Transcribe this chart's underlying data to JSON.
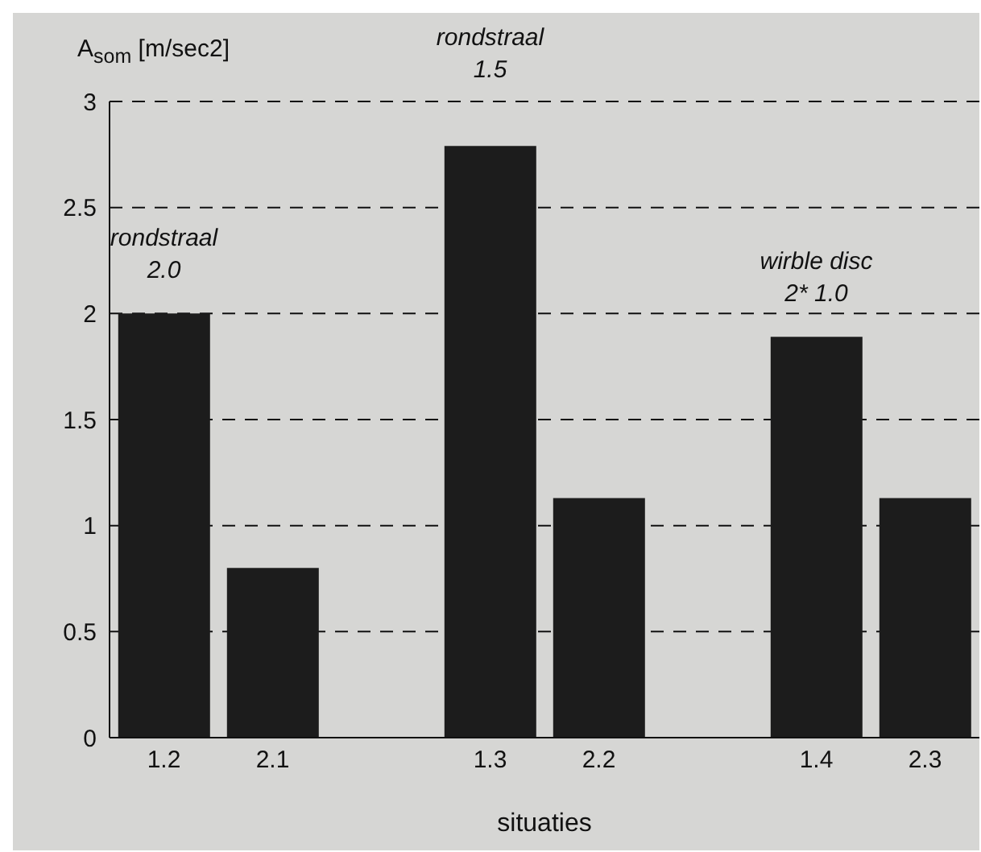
{
  "chart_data": {
    "type": "bar",
    "xlabel": "situaties",
    "ylabel": "A$_{som}$ [m/sec2]",
    "categories": [
      "1.2",
      "2.1",
      null,
      "1.3",
      "2.2",
      null,
      "1.4",
      "2.3"
    ],
    "values": [
      2.0,
      0.8,
      null,
      2.79,
      1.13,
      null,
      1.89,
      1.13
    ],
    "color": "#1c1c1c",
    "ylim": [
      0,
      3
    ],
    "yticks": [
      0,
      0.5,
      1,
      1.5,
      2,
      2.5,
      3
    ],
    "grid": "y",
    "line_style": "dashed",
    "annotations": [
      {
        "text": "rondstraal\n2.0",
        "x": "1.2",
        "y": 2.0
      },
      {
        "text": "rondstraal\n1.5",
        "x": "1.3",
        "y": 2.79
      },
      {
        "text": "wirble disc\n2* 1.0",
        "x": "1.4",
        "y": 1.89
      }
    ]
  }
}
